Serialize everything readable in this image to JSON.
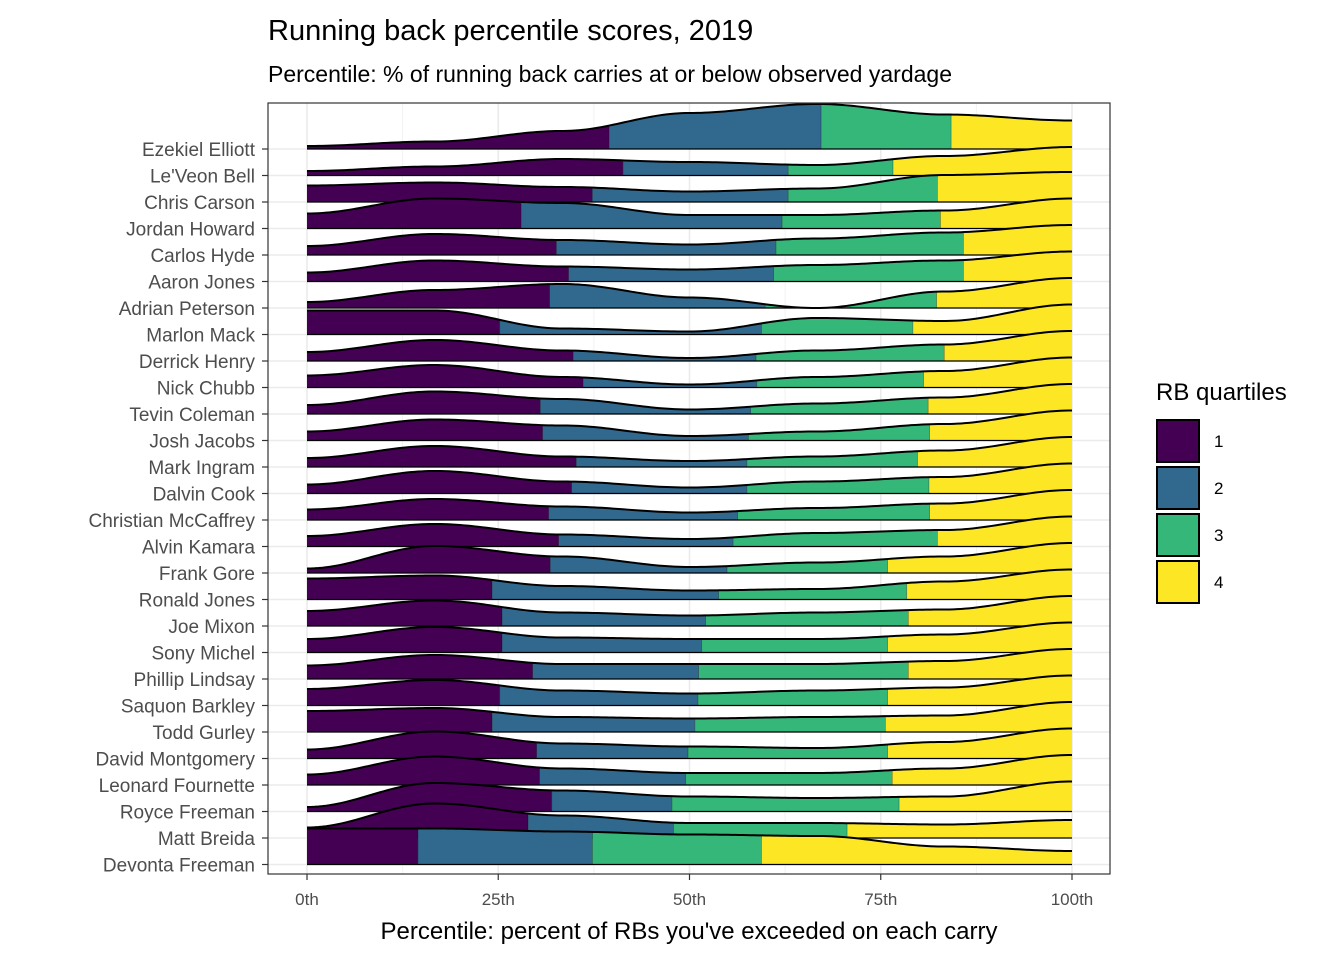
{
  "chart_data": {
    "type": "area",
    "subtype": "stacked ridgeline density, filled by quartile",
    "title": "Running back percentile scores, 2019",
    "subtitle": "Percentile: % of running back carries at or below observed yardage",
    "xlabel": "Percentile: percent of RBs you've exceeded on each carry",
    "ylabel": "",
    "xlim": [
      0,
      100
    ],
    "x_ticks": [
      "0th",
      "25th",
      "50th",
      "75th",
      "100th"
    ],
    "x_tick_values": [
      0,
      25,
      50,
      75,
      100
    ],
    "grid": true,
    "legend": {
      "title": "RB quartiles",
      "position": "right",
      "entries": [
        {
          "label": "1",
          "color": "#440154"
        },
        {
          "label": "2",
          "color": "#31688E"
        },
        {
          "label": "3",
          "color": "#35B779"
        },
        {
          "label": "4",
          "color": "#FDE725"
        }
      ]
    },
    "colors": {
      "q1": "#440154",
      "q2": "#31688E",
      "q3": "#35B779",
      "q4": "#FDE725",
      "outline": "#000000",
      "grid": "#EBEBEB"
    },
    "series": [
      {
        "name": "Ezekiel Elliott",
        "quartile_cuts": [
          39.5,
          67.2,
          84.2
        ],
        "density": [
          0.1,
          0.25,
          0.6,
          1.2,
          1.5,
          1.15,
          0.95
        ]
      },
      {
        "name": "Le'Veon Bell",
        "quartile_cuts": [
          41.3,
          62.9,
          76.6
        ],
        "density": [
          0.15,
          0.3,
          0.55,
          0.45,
          0.35,
          0.65,
          0.95
        ]
      },
      {
        "name": "Chris Carson",
        "quartile_cuts": [
          37.3,
          62.9,
          82.4
        ],
        "density": [
          0.55,
          0.65,
          0.5,
          0.35,
          0.45,
          0.9,
          1.0
        ]
      },
      {
        "name": "Jordan Howard",
        "quartile_cuts": [
          28.0,
          62.1,
          82.8
        ],
        "density": [
          0.5,
          1.0,
          0.85,
          0.45,
          0.45,
          0.6,
          1.0
        ]
      },
      {
        "name": "Carlos Hyde",
        "quartile_cuts": [
          32.6,
          61.3,
          85.8
        ],
        "density": [
          0.3,
          0.7,
          0.5,
          0.35,
          0.55,
          0.75,
          1.0
        ]
      },
      {
        "name": "Aaron Jones",
        "quartile_cuts": [
          34.2,
          61.0,
          85.8
        ],
        "density": [
          0.3,
          0.7,
          0.5,
          0.4,
          0.55,
          0.7,
          1.0
        ]
      },
      {
        "name": "Adrian Peterson",
        "quartile_cuts": [
          31.7,
          59.9,
          82.3
        ],
        "density": [
          0.2,
          0.6,
          0.8,
          0.35,
          0.0,
          0.55,
          1.0
        ]
      },
      {
        "name": "Marlon Mack",
        "quartile_cuts": [
          25.2,
          59.4,
          79.2
        ],
        "density": [
          0.8,
          0.8,
          0.2,
          0.1,
          0.55,
          0.45,
          1.0
        ]
      },
      {
        "name": "Derrick Henry",
        "quartile_cuts": [
          34.8,
          58.7,
          83.3
        ],
        "density": [
          0.3,
          0.7,
          0.35,
          0.1,
          0.35,
          0.55,
          1.0
        ]
      },
      {
        "name": "Nick Chubb",
        "quartile_cuts": [
          36.1,
          58.8,
          80.6
        ],
        "density": [
          0.4,
          0.75,
          0.35,
          0.1,
          0.35,
          0.55,
          1.0
        ]
      },
      {
        "name": "Tevin Coleman",
        "quartile_cuts": [
          30.5,
          58.0,
          81.2
        ],
        "density": [
          0.3,
          0.75,
          0.5,
          0.15,
          0.35,
          0.55,
          1.0
        ]
      },
      {
        "name": "Josh Jacobs",
        "quartile_cuts": [
          30.8,
          57.7,
          81.4
        ],
        "density": [
          0.3,
          0.7,
          0.5,
          0.15,
          0.3,
          0.55,
          1.0
        ]
      },
      {
        "name": "Mark Ingram",
        "quartile_cuts": [
          35.2,
          57.5,
          79.8
        ],
        "density": [
          0.3,
          0.7,
          0.35,
          0.2,
          0.35,
          0.55,
          1.0
        ]
      },
      {
        "name": "Dalvin Cook",
        "quartile_cuts": [
          34.6,
          57.5,
          81.3
        ],
        "density": [
          0.3,
          0.75,
          0.4,
          0.2,
          0.4,
          0.55,
          1.0
        ]
      },
      {
        "name": "Christian McCaffrey",
        "quartile_cuts": [
          31.6,
          56.3,
          81.4
        ],
        "density": [
          0.35,
          0.7,
          0.45,
          0.25,
          0.4,
          0.55,
          1.0
        ]
      },
      {
        "name": "Alvin Kamara",
        "quartile_cuts": [
          32.9,
          55.7,
          82.4
        ],
        "density": [
          0.35,
          0.75,
          0.4,
          0.25,
          0.45,
          0.55,
          1.0
        ]
      },
      {
        "name": "Frank Gore",
        "quartile_cuts": [
          31.8,
          54.9,
          75.9
        ],
        "density": [
          0.15,
          0.9,
          0.55,
          0.2,
          0.35,
          0.55,
          1.0
        ]
      },
      {
        "name": "Ronald Jones",
        "quartile_cuts": [
          24.2,
          53.8,
          78.4
        ],
        "density": [
          0.7,
          0.8,
          0.45,
          0.3,
          0.35,
          0.6,
          1.0
        ]
      },
      {
        "name": "Joe Mixon",
        "quartile_cuts": [
          25.5,
          52.1,
          78.6
        ],
        "density": [
          0.5,
          0.85,
          0.45,
          0.35,
          0.45,
          0.55,
          1.0
        ]
      },
      {
        "name": "Sony Michel",
        "quartile_cuts": [
          25.5,
          51.6,
          75.9
        ],
        "density": [
          0.45,
          0.85,
          0.5,
          0.45,
          0.45,
          0.6,
          1.0
        ]
      },
      {
        "name": "Phillip Lindsay",
        "quartile_cuts": [
          29.5,
          51.2,
          78.6
        ],
        "density": [
          0.45,
          0.8,
          0.5,
          0.5,
          0.5,
          0.6,
          1.0
        ]
      },
      {
        "name": "Saquon Barkley",
        "quartile_cuts": [
          25.2,
          51.1,
          75.9
        ],
        "density": [
          0.55,
          0.85,
          0.5,
          0.4,
          0.5,
          0.6,
          1.0
        ]
      },
      {
        "name": "Todd Gurley",
        "quartile_cuts": [
          24.2,
          50.7,
          75.6
        ],
        "density": [
          0.7,
          0.8,
          0.5,
          0.45,
          0.5,
          0.55,
          1.0
        ]
      },
      {
        "name": "David Montgomery",
        "quartile_cuts": [
          30.0,
          49.8,
          75.9
        ],
        "density": [
          0.3,
          0.9,
          0.5,
          0.4,
          0.35,
          0.55,
          1.0
        ]
      },
      {
        "name": "Leonard Fournette",
        "quartile_cuts": [
          30.4,
          49.5,
          76.5
        ],
        "density": [
          0.35,
          0.95,
          0.55,
          0.4,
          0.4,
          0.55,
          1.0
        ]
      },
      {
        "name": "Royce Freeman",
        "quartile_cuts": [
          32.0,
          47.7,
          77.4
        ],
        "density": [
          0.15,
          0.95,
          0.7,
          0.5,
          0.45,
          0.5,
          1.0
        ]
      },
      {
        "name": "Matt Breida",
        "quartile_cuts": [
          28.9,
          47.9,
          70.6
        ],
        "density": [
          0.35,
          1.15,
          0.75,
          0.5,
          0.5,
          0.45,
          0.6
        ]
      },
      {
        "name": "Devonta Freeman",
        "quartile_cuts": [
          14.5,
          37.3,
          59.4
        ],
        "density": [
          1.2,
          1.2,
          1.1,
          1.0,
          0.95,
          0.6,
          0.45
        ]
      }
    ]
  }
}
